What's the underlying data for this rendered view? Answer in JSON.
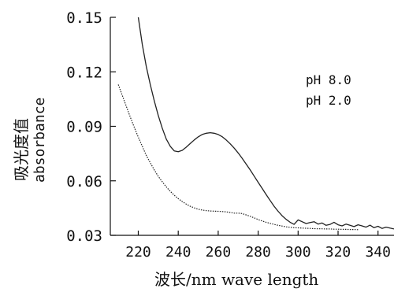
{
  "chart_data": {
    "type": "line",
    "xlabel": "波长/nm wave length",
    "ylabel_cn": "吸光度值",
    "ylabel_en": "absorbance",
    "xlim": [
      206,
      348
    ],
    "ylim": [
      0.03,
      0.15
    ],
    "xticks": [
      220,
      240,
      260,
      280,
      300,
      320,
      340
    ],
    "yticks": [
      "0.03",
      "0.06",
      "0.09",
      "0.12",
      "0.15"
    ],
    "yticks_values": [
      0.03,
      0.06,
      0.09,
      0.12,
      0.15
    ],
    "legend": [
      "pH 8.0",
      "pH 2.0"
    ],
    "legend_position": "top-right",
    "grid": false,
    "series": [
      {
        "name": "pH 8.0",
        "x": [
          220,
          222,
          224,
          226,
          228,
          230,
          232,
          234,
          236,
          238,
          240,
          242,
          244,
          246,
          248,
          250,
          252,
          254,
          256,
          258,
          260,
          262,
          264,
          266,
          268,
          270,
          272,
          274,
          276,
          278,
          280,
          282,
          284,
          286,
          288,
          290,
          292,
          294,
          296,
          298,
          300,
          302,
          304,
          306,
          308,
          310,
          312,
          314,
          316,
          318,
          320,
          322,
          324,
          326,
          328,
          330,
          332,
          334,
          336,
          338,
          340,
          342,
          344,
          346,
          348
        ],
        "y": [
          0.15,
          0.135,
          0.123,
          0.113,
          0.104,
          0.096,
          0.089,
          0.083,
          0.079,
          0.0765,
          0.076,
          0.0768,
          0.0785,
          0.0805,
          0.0825,
          0.0842,
          0.0855,
          0.0862,
          0.0865,
          0.0862,
          0.0855,
          0.0843,
          0.0825,
          0.0804,
          0.078,
          0.0753,
          0.0724,
          0.0692,
          0.066,
          0.0626,
          0.0592,
          0.0558,
          0.0525,
          0.0492,
          0.046,
          0.0432,
          0.0408,
          0.0388,
          0.0372,
          0.036,
          0.0385,
          0.0375,
          0.0365,
          0.037,
          0.0375,
          0.0362,
          0.0368,
          0.0355,
          0.036,
          0.0372,
          0.0358,
          0.0352,
          0.0362,
          0.0355,
          0.0348,
          0.0358,
          0.0352,
          0.0345,
          0.0356,
          0.0342,
          0.035,
          0.0338,
          0.0345,
          0.034,
          0.0335
        ]
      },
      {
        "name": "pH 2.0",
        "x": [
          210,
          212,
          214,
          216,
          218,
          220,
          222,
          224,
          226,
          228,
          230,
          232,
          234,
          236,
          238,
          240,
          242,
          244,
          246,
          248,
          250,
          252,
          254,
          256,
          258,
          260,
          262,
          264,
          266,
          268,
          270,
          272,
          274,
          276,
          278,
          280,
          282,
          284,
          286,
          288,
          290,
          292,
          294,
          296,
          298,
          300,
          302,
          304,
          306,
          308,
          310,
          312,
          314,
          316,
          318,
          320,
          322,
          324,
          326,
          328,
          330
        ],
        "y": [
          0.113,
          0.107,
          0.101,
          0.095,
          0.0895,
          0.084,
          0.079,
          0.074,
          0.07,
          0.066,
          0.0625,
          0.0595,
          0.0567,
          0.0542,
          0.0521,
          0.0502,
          0.0486,
          0.0472,
          0.046,
          0.0451,
          0.0444,
          0.0439,
          0.0436,
          0.0434,
          0.0433,
          0.0432,
          0.0431,
          0.0429,
          0.0426,
          0.0422,
          0.0422,
          0.042,
          0.0412,
          0.0405,
          0.0396,
          0.0387,
          0.0379,
          0.0372,
          0.0366,
          0.036,
          0.0355,
          0.0351,
          0.0347,
          0.0344,
          0.0342,
          0.0341,
          0.034,
          0.0339,
          0.0338,
          0.0337,
          0.0336,
          0.0336,
          0.0335,
          0.0335,
          0.0334,
          0.0334,
          0.0333,
          0.0333,
          0.0332,
          0.0332,
          0.0331
        ]
      }
    ]
  }
}
